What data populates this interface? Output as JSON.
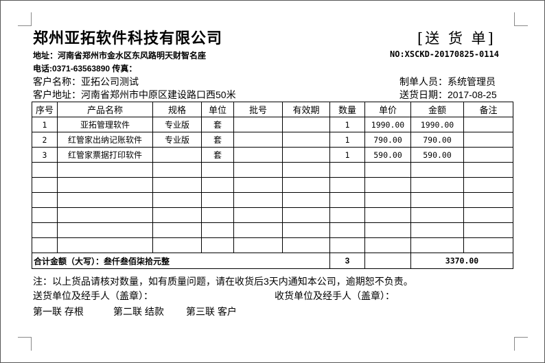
{
  "company": "郑州亚拓软件科技有限公司",
  "doc_title": "[送 货 单]",
  "doc_no": "NO:XSCKD-20170825-0114",
  "address": "地址：河南省郑州市金水区东风路明天财智名座",
  "phone": "电话:0371-63563890  传真：",
  "customer_name": "客户名称：亚拓公司测试",
  "customer_address": "客户地址：河南省郑州市中原区建设路口西50米",
  "operator": "制单人员：系统管理员",
  "delivery_date": "送货日期：2017-08-25",
  "table": {
    "headers": [
      "序号",
      "产品名称",
      "规格",
      "单位",
      "批号",
      "有效期",
      "数量",
      "单价",
      "金额",
      "备注"
    ],
    "rows": [
      [
        "1",
        "亚拓管理软件",
        "专业版",
        "套",
        "",
        "",
        "1",
        "1990.00",
        "1990.00",
        ""
      ],
      [
        "2",
        "红管家出纳记账软件",
        "专业版",
        "套",
        "",
        "",
        "1",
        "790.00",
        "790.00",
        ""
      ],
      [
        "3",
        "红管家票据打印软件",
        "",
        "套",
        "",
        "",
        "1",
        "590.00",
        "590.00",
        ""
      ],
      [
        "",
        "",
        "",
        "",
        "",
        "",
        "",
        "",
        "",
        ""
      ],
      [
        "",
        "",
        "",
        "",
        "",
        "",
        "",
        "",
        "",
        ""
      ],
      [
        "",
        "",
        "",
        "",
        "",
        "",
        "",
        "",
        "",
        ""
      ],
      [
        "",
        "",
        "",
        "",
        "",
        "",
        "",
        "",
        "",
        ""
      ],
      [
        "",
        "",
        "",
        "",
        "",
        "",
        "",
        "",
        "",
        ""
      ],
      [
        "",
        "",
        "",
        "",
        "",
        "",
        "",
        "",
        "",
        ""
      ]
    ],
    "total_label": "合计金额（大写）：叁仟叁佰柒拾元整",
    "total_qty": "3",
    "total_amount": "3370.00"
  },
  "note": "注：以上货品请核对数量，如有质量问题，请在收货后3天内通知本公司，逾期恕不负责。",
  "sender_sign": "送货单位及经手人（盖章）：",
  "receiver_sign": "收货单位及经手人（盖章）：",
  "copies": [
    "第一联 存根",
    "第二联 结款",
    "第三联 客户"
  ]
}
